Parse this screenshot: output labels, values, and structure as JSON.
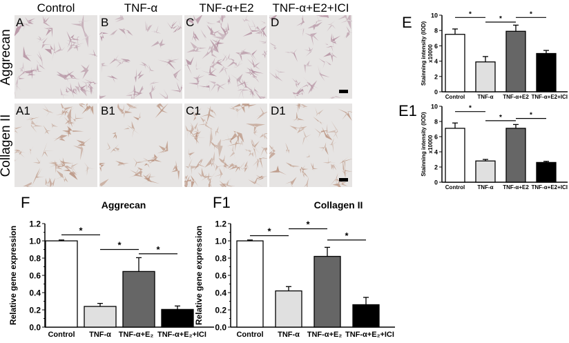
{
  "columns": [
    "Control",
    "TNF-α",
    "TNF-α+E2",
    "TNF-α+E2+ICI"
  ],
  "rows": [
    "Aggrecan",
    "Collagen II"
  ],
  "panels": [
    [
      "A",
      "B",
      "C",
      "D"
    ],
    [
      "A1",
      "B1",
      "C1",
      "D1"
    ]
  ],
  "stain_colors": {
    "background": "#e6e4e3",
    "aggrecan": "#b08a9c",
    "collagen": "#b8907c"
  },
  "bar_colors": [
    "#ffffff",
    "#e0e0e0",
    "#666666",
    "#000000"
  ],
  "chart_data": [
    {
      "id": "E",
      "letter": "E",
      "type": "bar",
      "title": "",
      "categories": [
        "Control",
        "TNF-α",
        "TNF-α+E2",
        "TNF-α+E2+ICI"
      ],
      "values": [
        7.5,
        3.9,
        7.9,
        5.0
      ],
      "errors": [
        0.7,
        0.7,
        0.8,
        0.4
      ],
      "ylabel": "Stainning intensity (IOD)",
      "ylabel2": "x10000",
      "ylim": [
        0,
        10
      ],
      "yticks": [
        "0",
        "2",
        "4",
        "6",
        "8",
        "10"
      ],
      "significance": [
        {
          "from": 0,
          "to": 1,
          "y": 9.7,
          "mark": "*"
        },
        {
          "from": 1,
          "to": 2,
          "y": 9.1,
          "mark": "*"
        },
        {
          "from": 2,
          "to": 3,
          "y": 9.7,
          "mark": "*"
        }
      ]
    },
    {
      "id": "E1",
      "letter": "E1",
      "type": "bar",
      "title": "",
      "categories": [
        "Control",
        "TNF-α",
        "TNF-α+E2",
        "TNF-α+E2+ICI"
      ],
      "values": [
        7.1,
        2.8,
        7.1,
        2.6
      ],
      "errors": [
        0.7,
        0.2,
        0.5,
        0.15
      ],
      "ylabel": "Stainning intensity (IOD)",
      "ylabel2": "x10000",
      "ylim": [
        0,
        10
      ],
      "yticks": [
        "0",
        "2",
        "4",
        "6",
        "8",
        "10"
      ],
      "significance": [
        {
          "from": 0,
          "to": 1,
          "y": 9.3,
          "mark": "*"
        },
        {
          "from": 1,
          "to": 2,
          "y": 8.1,
          "mark": "*"
        },
        {
          "from": 2,
          "to": 3,
          "y": 8.4,
          "mark": "*"
        }
      ]
    },
    {
      "id": "F",
      "letter": "F",
      "type": "bar",
      "title": "Aggrecan",
      "categories": [
        "Control",
        "TNF-α",
        "TNF-α+E₂",
        "TNF-α+E₂+ICI"
      ],
      "values": [
        1.0,
        0.24,
        0.645,
        0.205
      ],
      "errors": [
        0.01,
        0.035,
        0.16,
        0.04
      ],
      "ylabel": "Relative gene expression",
      "ylabel2": "",
      "ylim": [
        0,
        1.2
      ],
      "yticks": [
        "0.0",
        "0.2",
        "0.4",
        "0.6",
        "0.8",
        "1.0",
        "1.2"
      ],
      "significance": [
        {
          "from": 0,
          "to": 1,
          "y": 1.07,
          "mark": "*"
        },
        {
          "from": 1,
          "to": 2,
          "y": 0.9,
          "mark": "*"
        },
        {
          "from": 2,
          "to": 3,
          "y": 0.85,
          "mark": "*"
        }
      ]
    },
    {
      "id": "F1",
      "letter": "F1",
      "type": "bar",
      "title": "Collagen II",
      "categories": [
        "Control",
        "TNF-α",
        "TNF-α+E₂",
        "TNF-α+E₂+ICI"
      ],
      "values": [
        1.0,
        0.42,
        0.82,
        0.26
      ],
      "errors": [
        0.01,
        0.05,
        0.105,
        0.085
      ],
      "ylabel": "Relative gene expression",
      "ylabel2": "",
      "ylim": [
        0,
        1.2
      ],
      "yticks": [
        "0.0",
        "0.2",
        "0.4",
        "0.6",
        "0.8",
        "1.0",
        "1.2"
      ],
      "significance": [
        {
          "from": 0,
          "to": 1,
          "y": 1.06,
          "mark": "*"
        },
        {
          "from": 1,
          "to": 2,
          "y": 1.14,
          "mark": "*"
        },
        {
          "from": 2,
          "to": 3,
          "y": 1.01,
          "mark": "*"
        }
      ]
    }
  ]
}
